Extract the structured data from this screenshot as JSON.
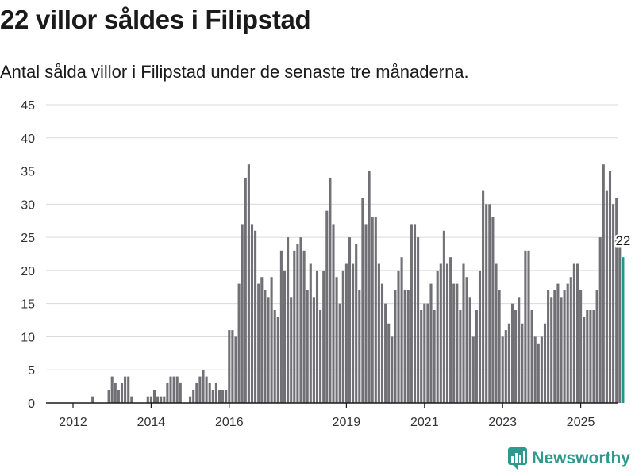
{
  "header": {
    "title": "22 villor såldes i Filipstad",
    "subtitle": "Antal sålda villor i Filipstad under de senaste tre månaderna."
  },
  "brand": {
    "name": "Newsworthy",
    "icon": "newsworthy-logo-icon",
    "color": "#2e9a8e"
  },
  "colors": {
    "bar": "#707075",
    "highlight": "#1a9a8c",
    "grid": "#d9d9d9",
    "axis": "#1a1a1a"
  },
  "chart_data": {
    "type": "bar",
    "x_start": "2012-01",
    "x_ticks": [
      "2012",
      "2014",
      "2016",
      "2019",
      "2021",
      "2023",
      "2025"
    ],
    "y_ticks": [
      "0",
      "5",
      "10",
      "15",
      "20",
      "25",
      "30",
      "35",
      "40",
      "45"
    ],
    "ylim": [
      0,
      45
    ],
    "grid": true,
    "highlight_last": true,
    "last_label": "22",
    "values": [
      0,
      0,
      0,
      0,
      0,
      0,
      1,
      0,
      0,
      0,
      0,
      2,
      4,
      3,
      2,
      3,
      4,
      4,
      1,
      0,
      0,
      0,
      0,
      1,
      1,
      2,
      1,
      1,
      1,
      3,
      4,
      4,
      4,
      3,
      0,
      0,
      1,
      2,
      3,
      4,
      5,
      4,
      3,
      2,
      3,
      2,
      2,
      2,
      11,
      11,
      10,
      18,
      27,
      34,
      36,
      27,
      26,
      18,
      19,
      17,
      16,
      19,
      14,
      13,
      23,
      20,
      25,
      16,
      23,
      24,
      25,
      23,
      17,
      21,
      16,
      20,
      14,
      20,
      29,
      34,
      27,
      19,
      15,
      20,
      21,
      25,
      21,
      24,
      17,
      31,
      27,
      35,
      28,
      28,
      21,
      18,
      15,
      12,
      10,
      17,
      20,
      22,
      17,
      17,
      27,
      27,
      25,
      14,
      15,
      15,
      18,
      14,
      20,
      21,
      26,
      21,
      22,
      18,
      18,
      14,
      21,
      19,
      16,
      10,
      14,
      20,
      32,
      30,
      30,
      28,
      21,
      17,
      10,
      11,
      12,
      15,
      14,
      16,
      12,
      23,
      23,
      14,
      10,
      9,
      10,
      12,
      17,
      16,
      17,
      18,
      16,
      17,
      18,
      19,
      21,
      21,
      17,
      13,
      14,
      14,
      14,
      17,
      25,
      36,
      32,
      35,
      30,
      31,
      24,
      22
    ]
  }
}
